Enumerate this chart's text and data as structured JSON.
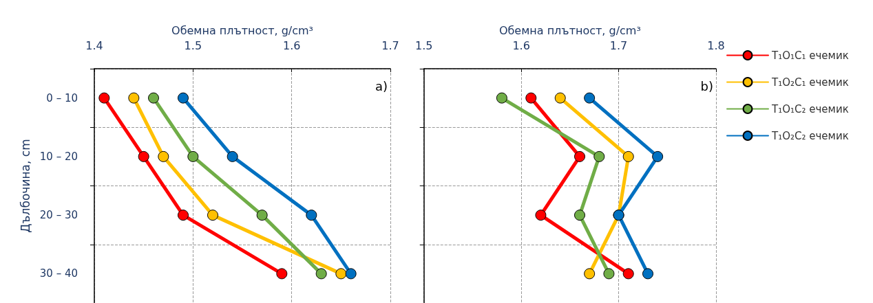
{
  "chart_data": [
    {
      "type": "line",
      "orientation": "horizontal",
      "xlabel": "Обемна плътност, g/cm³",
      "ylabel": "Дълбочина, cm",
      "categories": [
        "0 – 10",
        "10 – 20",
        "20 – 30",
        "30 – 40"
      ],
      "xlim": [
        1.4,
        1.7
      ],
      "xticks": [
        1.4,
        1.5,
        1.6,
        1.7
      ],
      "grid": true,
      "legend": false,
      "marker": "circle",
      "line_style": "solid",
      "annotations": [
        "a)"
      ],
      "series": [
        {
          "color": "#ff0000",
          "values": [
            1.41,
            1.45,
            1.49,
            1.59
          ]
        },
        {
          "color": "#ffc000",
          "values": [
            1.44,
            1.47,
            1.52,
            1.65
          ]
        },
        {
          "color": "#70ad47",
          "values": [
            1.46,
            1.5,
            1.57,
            1.63
          ]
        },
        {
          "color": "#0070c0",
          "values": [
            1.49,
            1.54,
            1.62,
            1.66
          ]
        }
      ]
    },
    {
      "type": "line",
      "orientation": "horizontal",
      "xlabel": "Обемна плътност, g/cm³",
      "categories": [
        null,
        null,
        null,
        null
      ],
      "xlim": [
        1.5,
        1.8
      ],
      "xticks": [
        1.5,
        1.6,
        1.7,
        1.8
      ],
      "grid": true,
      "legend": "right",
      "tick_labels": "x",
      "marker": "circle",
      "line_style": "solid",
      "annotations": [
        "b)"
      ],
      "series": [
        {
          "name": "T₁O₁C₁ ечемик",
          "color": "#ff0000",
          "values": [
            1.61,
            1.66,
            1.62,
            1.71
          ]
        },
        {
          "name": "T₁O₂C₁ ечемик",
          "color": "#ffc000",
          "values": [
            1.64,
            1.71,
            1.7,
            1.67
          ]
        },
        {
          "name": "T₁O₁C₂ ечемик",
          "color": "#70ad47",
          "values": [
            1.58,
            1.68,
            1.66,
            1.69
          ]
        },
        {
          "name": "T₁O₂C₂ ечемик",
          "color": "#0070c0",
          "values": [
            1.67,
            1.74,
            1.7,
            1.73
          ]
        }
      ]
    }
  ]
}
